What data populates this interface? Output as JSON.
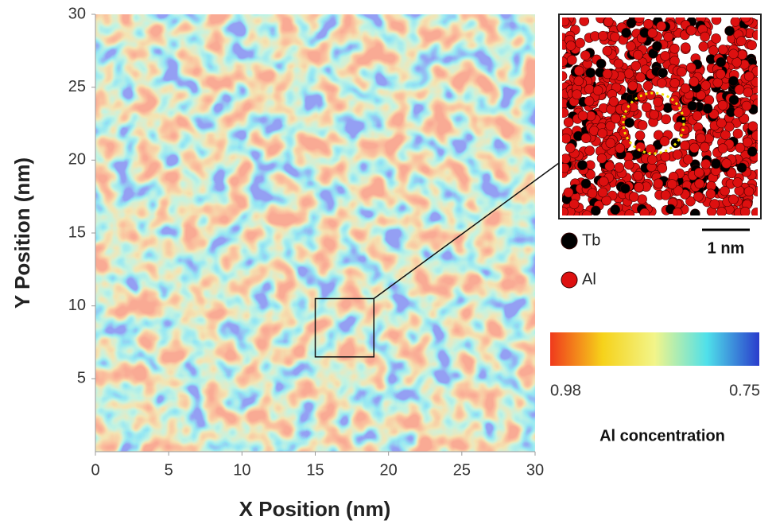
{
  "chart_data": {
    "type": "heatmap",
    "x_label": "X Position (nm)",
    "y_label": "Y Position (nm)",
    "xlim": [
      0,
      30
    ],
    "ylim": [
      0,
      30
    ],
    "xticks": [
      0,
      5,
      10,
      15,
      20,
      25,
      30
    ],
    "yticks": [
      5,
      10,
      15,
      20,
      25,
      30
    ],
    "zoom_region": {
      "x": [
        15,
        19
      ],
      "y": [
        6.5,
        10.5
      ]
    },
    "legend": [
      {
        "name": "Tb",
        "color": "#000000"
      },
      {
        "name": "Al",
        "color": "#dd1010"
      }
    ],
    "scale_bar": "1 nm",
    "colorbar": {
      "range": [
        0.98,
        0.75
      ],
      "title": "Al concentration",
      "colors": [
        "#f03a1c",
        "#f6d21a",
        "#f2f58a",
        "#4fe0ea",
        "#2a3ccc"
      ]
    }
  }
}
